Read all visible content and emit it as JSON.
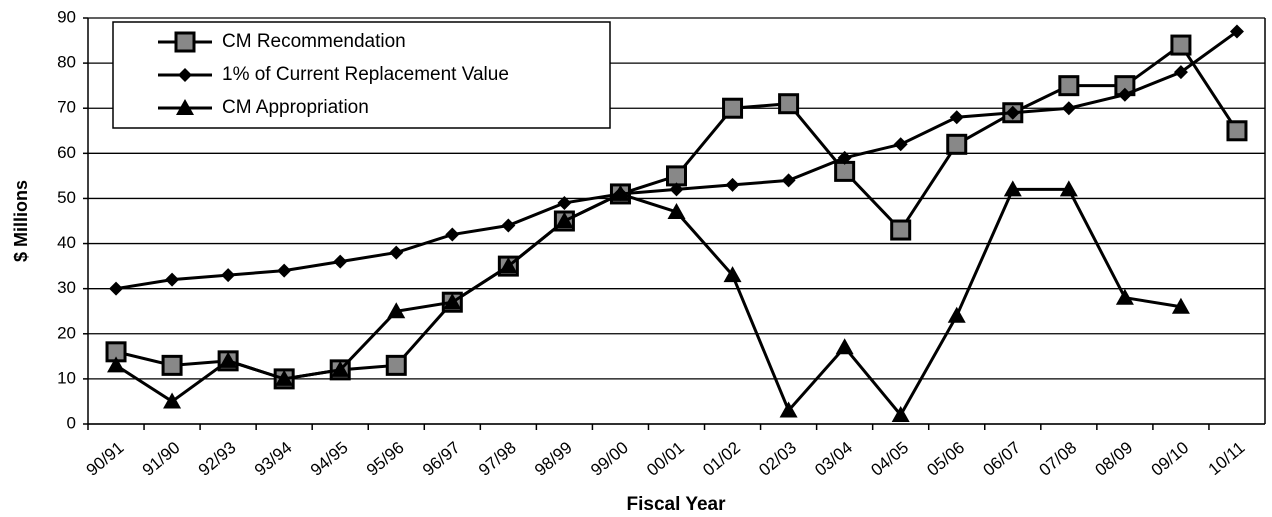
{
  "chart_data": {
    "type": "line",
    "x_label": "Fiscal Year",
    "y_label": "$ Millions",
    "categories": [
      "90/91",
      "91/90",
      "92/93",
      "93/94",
      "94/95",
      "95/96",
      "96/97",
      "97/98",
      "98/99",
      "99/00",
      "00/01",
      "01/02",
      "02/03",
      "03/04",
      "04/05",
      "05/06",
      "06/07",
      "07/08",
      "08/09",
      "09/10",
      "10/11"
    ],
    "series": [
      {
        "name": "CM Recommendation",
        "color": "#000000",
        "marker": "square",
        "values": [
          16,
          13,
          14,
          10,
          12,
          13,
          27,
          35,
          45,
          51,
          55,
          70,
          71,
          56,
          43,
          62,
          69,
          75,
          75,
          84,
          65
        ]
      },
      {
        "name": "1% of Current Replacement Value",
        "color": "#000000",
        "marker": "diamond",
        "values": [
          30,
          32,
          33,
          34,
          36,
          38,
          42,
          44,
          49,
          51,
          52,
          53,
          54,
          59,
          62,
          68,
          69,
          70,
          73,
          78,
          87
        ]
      },
      {
        "name": "CM Appropriation",
        "color": "#000000",
        "marker": "triangle",
        "values": [
          13,
          5,
          14,
          10,
          12,
          25,
          27,
          35,
          45,
          51,
          47,
          33,
          3,
          17,
          2,
          24,
          52,
          52,
          28,
          26,
          null
        ]
      }
    ],
    "ylim": [
      0,
      90
    ],
    "yticks": [
      0,
      10,
      20,
      30,
      40,
      50,
      60,
      70,
      80,
      90
    ],
    "grid": true,
    "legend": "upper left"
  }
}
